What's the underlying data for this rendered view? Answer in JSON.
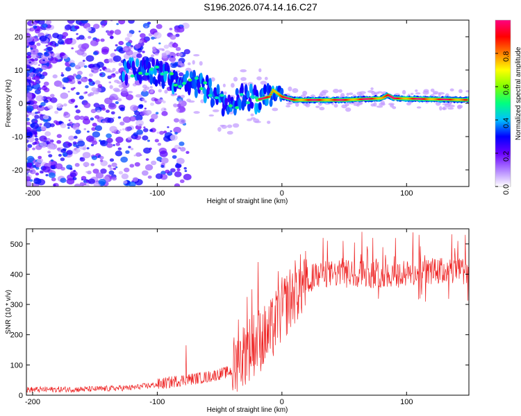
{
  "title": "S196.2026.074.14.16.C27",
  "colorbar": {
    "label": "Normalized spectral amplitude",
    "range": [
      0.0,
      1.0
    ],
    "ticks": [
      "0.0",
      "0.2",
      "0.4",
      "0.6",
      "0.8"
    ],
    "tick_values": [
      0.0,
      0.2,
      0.4,
      0.6,
      0.8
    ],
    "colormap": [
      "#ffffff",
      "#b080ff",
      "#6a00ff",
      "#0000ff",
      "#00c0ff",
      "#00ff80",
      "#80ff00",
      "#ffff00",
      "#ff8000",
      "#ff0000",
      "#ff0080"
    ]
  },
  "chart_data": [
    {
      "type": "heatmap",
      "name": "spectrogram",
      "xlabel": "Height of straight line (km)",
      "ylabel": "Frequency (Hz)",
      "xlim": [
        -205,
        150
      ],
      "ylim": [
        -25,
        25
      ],
      "x_ticks": [
        -200,
        -100,
        0,
        100
      ],
      "x_tick_labels": [
        "-200",
        "-100",
        "0",
        "100"
      ],
      "y_ticks": [
        -20,
        -10,
        0,
        10,
        20
      ],
      "y_tick_labels": [
        "-20",
        "-10",
        "0",
        "10",
        "20"
      ],
      "ridge": [
        {
          "x": -125,
          "y": 10
        },
        {
          "x": -110,
          "y": 10
        },
        {
          "x": -100,
          "y": 9
        },
        {
          "x": -90,
          "y": 8
        },
        {
          "x": -80,
          "y": 6
        },
        {
          "x": -70,
          "y": 6
        },
        {
          "x": -60,
          "y": 4
        },
        {
          "x": -50,
          "y": 1
        },
        {
          "x": -40,
          "y": -2
        },
        {
          "x": -35,
          "y": 1
        },
        {
          "x": -30,
          "y": 2
        },
        {
          "x": -20,
          "y": 1
        },
        {
          "x": -10,
          "y": 2
        },
        {
          "x": -7,
          "y": 4
        },
        {
          "x": 0,
          "y": 2
        },
        {
          "x": 10,
          "y": 1
        },
        {
          "x": 50,
          "y": 1
        },
        {
          "x": 80,
          "y": 1.5
        },
        {
          "x": 85,
          "y": 2.5
        },
        {
          "x": 90,
          "y": 1.5
        },
        {
          "x": 150,
          "y": 1
        }
      ]
    },
    {
      "type": "line",
      "name": "snr",
      "xlabel": "Height of straight line (km)",
      "ylabel": "SNR (10 * v/v)",
      "xlim": [
        -205,
        150
      ],
      "ylim": [
        0,
        550
      ],
      "x_ticks": [
        -200,
        -100,
        0,
        100
      ],
      "x_tick_labels": [
        "-200",
        "-100",
        "0",
        "100"
      ],
      "y_ticks": [
        0,
        100,
        200,
        300,
        400,
        500
      ],
      "y_tick_labels": [
        "0",
        "100",
        "200",
        "300",
        "400",
        "500"
      ],
      "color": "#ee2222",
      "trend": {
        "x": [
          -205,
          -150,
          -120,
          -100,
          -80,
          -60,
          -40,
          -30,
          -20,
          -10,
          0,
          10,
          20,
          30,
          40,
          60,
          80,
          100,
          120,
          150
        ],
        "y": [
          18,
          20,
          25,
          35,
          50,
          60,
          80,
          140,
          180,
          200,
          280,
          340,
          380,
          400,
          400,
          405,
          400,
          400,
          410,
          410
        ]
      },
      "spikes": [
        {
          "x": -77,
          "y": 165
        },
        {
          "x": -35,
          "y": 250
        },
        {
          "x": -28,
          "y": 325
        },
        {
          "x": -24,
          "y": 350
        },
        {
          "x": -19,
          "y": 440
        },
        {
          "x": -3,
          "y": 410
        },
        {
          "x": 18,
          "y": 450
        },
        {
          "x": 33,
          "y": 520
        },
        {
          "x": 49,
          "y": 510
        },
        {
          "x": 64,
          "y": 540
        },
        {
          "x": 73,
          "y": 520
        },
        {
          "x": 110,
          "y": 530
        },
        {
          "x": 141,
          "y": 510
        },
        {
          "x": 147,
          "y": 530
        }
      ]
    }
  ]
}
